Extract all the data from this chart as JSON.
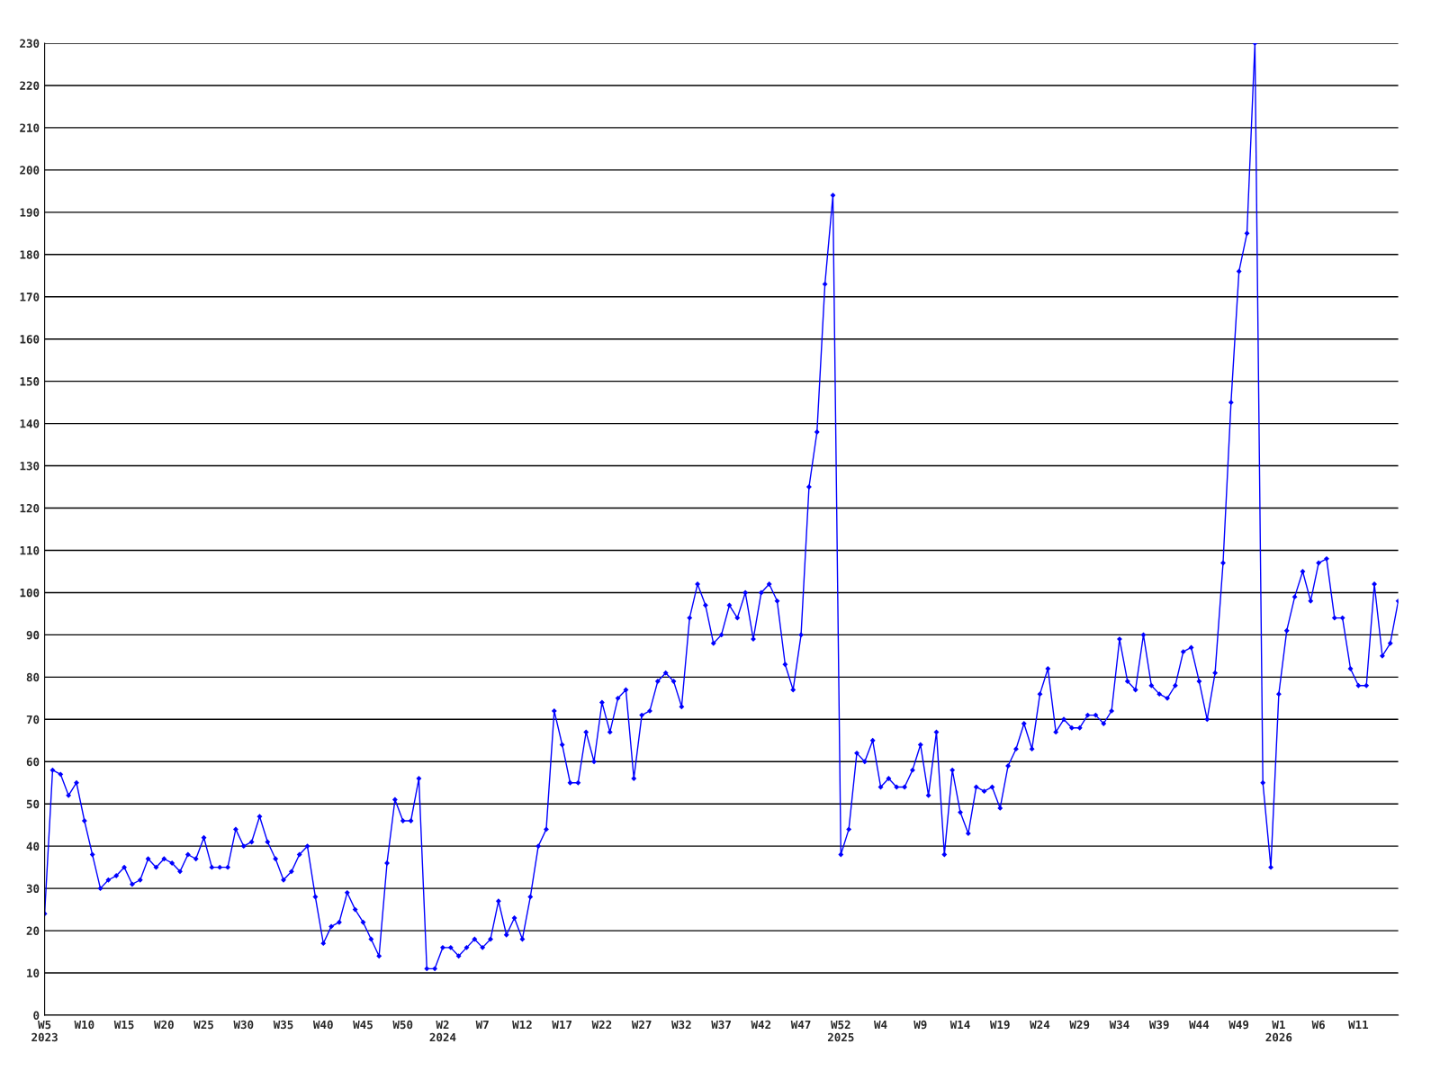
{
  "chart_data": {
    "type": "line",
    "categories": [
      "W5\n2023",
      null,
      null,
      null,
      null,
      "W10",
      null,
      null,
      null,
      null,
      "W15",
      null,
      null,
      null,
      null,
      "W20",
      null,
      null,
      null,
      null,
      "W25",
      null,
      null,
      null,
      null,
      "W30",
      null,
      null,
      null,
      null,
      "W35",
      null,
      null,
      null,
      null,
      "W40",
      null,
      null,
      null,
      null,
      "W45",
      null,
      null,
      null,
      null,
      "W50",
      null,
      null,
      null,
      null,
      "W2\n2024",
      null,
      null,
      null,
      null,
      "W7",
      null,
      null,
      null,
      null,
      "W12",
      null,
      null,
      null,
      null,
      "W17",
      null,
      null,
      null,
      null,
      "W22",
      null,
      null,
      null,
      null,
      "W27",
      null,
      null,
      null,
      null,
      "W32",
      null,
      null,
      null,
      null,
      "W37",
      null,
      null,
      null,
      null,
      "W42",
      null,
      null,
      null,
      null,
      "W47",
      null,
      null,
      null,
      null,
      "W52\n2025",
      null,
      null,
      null,
      null,
      "W4",
      null,
      null,
      null,
      null,
      "W9",
      null,
      null,
      null,
      null,
      "W14",
      null,
      null,
      null,
      null,
      "W19",
      null,
      null,
      null,
      null,
      "W24",
      null,
      null,
      null,
      null,
      "W29",
      null,
      null,
      null,
      null,
      "W34",
      null,
      null,
      null,
      null,
      "W39",
      null,
      null,
      null,
      null,
      "W44",
      null,
      null,
      null,
      null,
      "W49",
      null,
      null,
      null,
      null,
      "W1\n2026",
      null,
      null,
      null,
      null,
      "W6",
      null,
      null,
      null,
      null,
      "W11",
      null,
      null,
      null,
      null,
      null
    ],
    "series": [
      {
        "color": "#0000ff",
        "values": [
          24,
          58,
          57,
          52,
          55,
          46,
          38,
          30,
          32,
          33,
          35,
          31,
          32,
          37,
          35,
          37,
          36,
          34,
          38,
          37,
          42,
          35,
          35,
          35,
          44,
          40,
          41,
          47,
          41,
          37,
          32,
          34,
          38,
          40,
          28,
          17,
          21,
          22,
          29,
          25,
          22,
          18,
          14,
          36,
          51,
          46,
          46,
          56,
          11,
          11,
          16,
          16,
          14,
          16,
          18,
          16,
          18,
          27,
          19,
          23,
          18,
          28,
          40,
          44,
          72,
          64,
          55,
          55,
          67,
          60,
          74,
          67,
          75,
          77,
          56,
          71,
          72,
          79,
          81,
          79,
          73,
          94,
          102,
          97,
          88,
          90,
          97,
          94,
          100,
          89,
          100,
          102,
          98,
          83,
          77,
          90,
          125,
          138,
          173,
          194,
          38,
          44,
          62,
          60,
          65,
          54,
          56,
          54,
          54,
          58,
          64,
          52,
          67,
          38,
          58,
          48,
          43,
          54,
          53,
          54,
          49,
          59,
          63,
          69,
          63,
          76,
          82,
          67,
          70,
          68,
          68,
          71,
          71,
          69,
          72,
          89,
          79,
          77,
          90,
          78,
          76,
          75,
          78,
          86,
          87,
          79,
          70,
          81,
          107,
          145,
          176,
          185,
          230,
          55,
          35,
          76,
          91,
          99,
          105,
          98,
          107,
          108,
          94,
          94,
          82,
          78,
          78,
          102,
          85,
          88,
          98
        ]
      }
    ],
    "ylim": [
      0,
      230
    ],
    "yticks": [
      0,
      10,
      20,
      30,
      40,
      50,
      60,
      70,
      80,
      90,
      100,
      110,
      120,
      130,
      140,
      150,
      160,
      170,
      180,
      190,
      200,
      210,
      220,
      230
    ],
    "grid": "y",
    "marker": "diamond",
    "line_style": "solid"
  }
}
